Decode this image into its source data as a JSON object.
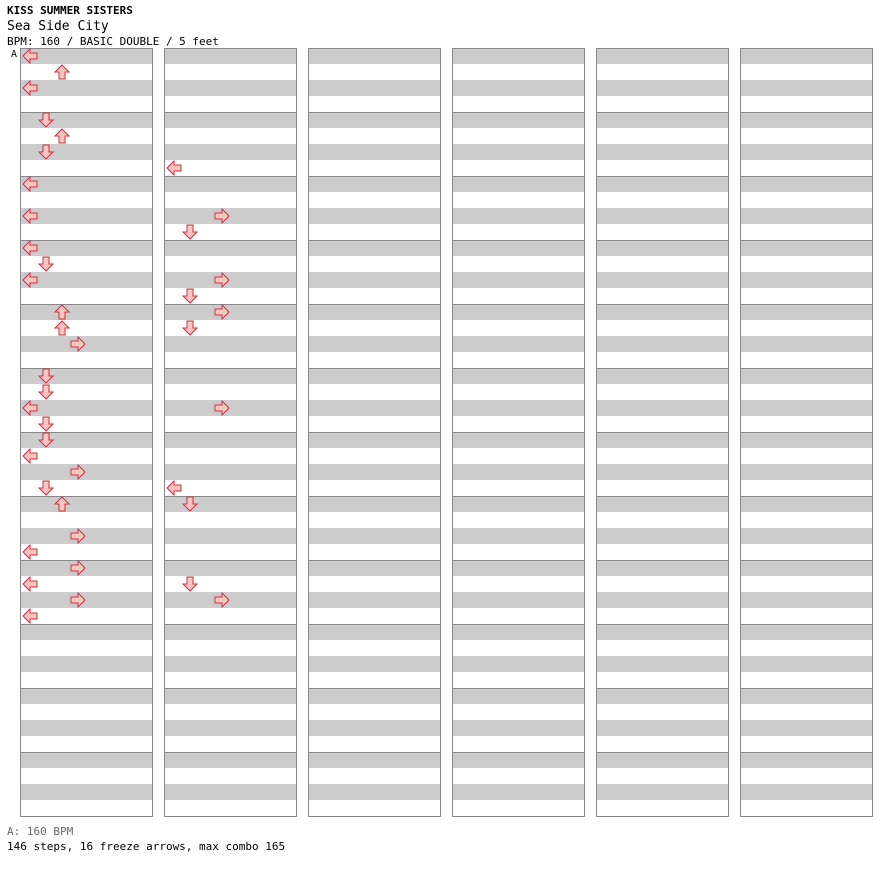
{
  "header": {
    "title": "KISS SUMMER SISTERS",
    "subtitle": "Sea Side City",
    "info": "BPM: 160 / BASIC DOUBLE / 5 feet",
    "marker": "A"
  },
  "footer": {
    "bpm_line": "A: 160 BPM",
    "stats_line": "146 steps, 16 freeze arrows, max combo 165"
  },
  "colors": {
    "stripe": "#cccccc",
    "grid": "#888888",
    "step_fill": "#ffc4c4",
    "step_stroke": "#c83232",
    "shock_fill": "#a8d4f5",
    "shock_stroke": "#3a7fc0",
    "freeze_fill": "#c8f5c8",
    "freeze_stroke": "#3c8c3c"
  },
  "chart_data": {
    "type": "step-chart",
    "columns": 6,
    "measures_per_column": 12,
    "lanes": 8,
    "arrows": [
      [
        1,
        1,
        0,
        "L"
      ],
      [
        1,
        1,
        8,
        "U"
      ],
      [
        1,
        1,
        16,
        "L"
      ],
      [
        1,
        2,
        0,
        "D"
      ],
      [
        1,
        2,
        8,
        "U"
      ],
      [
        1,
        2,
        16,
        "D"
      ],
      [
        1,
        3,
        0,
        "L"
      ],
      [
        1,
        3,
        16,
        "L"
      ],
      [
        1,
        4,
        0,
        "L"
      ],
      [
        1,
        4,
        8,
        "D"
      ],
      [
        1,
        4,
        16,
        "L"
      ],
      [
        1,
        5,
        0,
        "U"
      ],
      [
        1,
        5,
        8,
        "U"
      ],
      [
        1,
        5,
        16,
        "R"
      ],
      [
        1,
        6,
        0,
        "D"
      ],
      [
        1,
        6,
        8,
        "D"
      ],
      [
        1,
        6,
        16,
        "L"
      ],
      [
        1,
        6,
        24,
        "D"
      ],
      [
        1,
        7,
        0,
        "D"
      ],
      [
        1,
        7,
        8,
        "L"
      ],
      [
        1,
        7,
        16,
        "R"
      ],
      [
        1,
        7,
        24,
        "D"
      ],
      [
        1,
        8,
        0,
        "U"
      ],
      [
        1,
        8,
        16,
        "R"
      ],
      [
        1,
        8,
        24,
        "L"
      ],
      [
        1,
        9,
        0,
        "R"
      ],
      [
        1,
        9,
        8,
        "L"
      ],
      [
        1,
        9,
        16,
        "R"
      ],
      [
        1,
        9,
        24,
        "L"
      ],
      [
        2,
        2,
        24,
        "L"
      ],
      [
        2,
        3,
        24,
        "D"
      ],
      [
        2,
        3,
        16,
        "R"
      ],
      [
        2,
        4,
        16,
        "R"
      ],
      [
        2,
        4,
        24,
        "D"
      ],
      [
        2,
        5,
        0,
        "R"
      ],
      [
        2,
        5,
        8,
        "D"
      ],
      [
        2,
        6,
        16,
        "R"
      ],
      [
        2,
        7,
        24,
        "L"
      ],
      [
        2,
        8,
        0,
        "D"
      ],
      [
        2,
        9,
        8,
        "D"
      ],
      [
        2,
        9,
        16,
        "R"
      ]
    ],
    "freezes_count": 16,
    "steps_count": 146,
    "max_combo": 165,
    "bpm": 160
  }
}
